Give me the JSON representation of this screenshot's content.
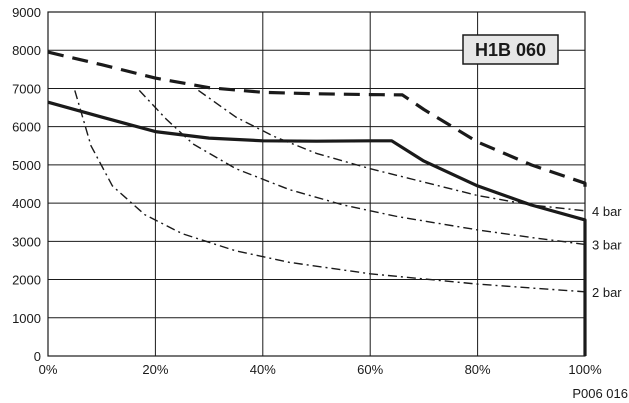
{
  "chart_data": {
    "type": "line",
    "title": "H1B 060",
    "footer": "P006 016",
    "xlabel": "",
    "ylabel": "",
    "xlim": [
      0,
      100
    ],
    "ylim": [
      0,
      9000
    ],
    "x_ticks": [
      0,
      20,
      40,
      60,
      80,
      100
    ],
    "x_tick_labels": [
      "0%",
      "20%",
      "40%",
      "60%",
      "80%",
      "100%"
    ],
    "y_ticks": [
      0,
      1000,
      2000,
      3000,
      4000,
      5000,
      6000,
      7000,
      8000,
      9000
    ],
    "y_tick_labels": [
      "0",
      "1000",
      "2000",
      "3000",
      "4000",
      "5000",
      "6000",
      "7000",
      "8000",
      "9000"
    ],
    "grid": true,
    "series": [
      {
        "style": "dashed-thick",
        "points": [
          [
            0,
            7950
          ],
          [
            10,
            7620
          ],
          [
            20,
            7270
          ],
          [
            30,
            7020
          ],
          [
            40,
            6900
          ],
          [
            50,
            6860
          ],
          [
            60,
            6840
          ],
          [
            66,
            6830
          ],
          [
            70,
            6450
          ],
          [
            80,
            5600
          ],
          [
            90,
            5000
          ],
          [
            100,
            4520
          ],
          [
            100,
            4250
          ]
        ]
      },
      {
        "style": "solid-thick",
        "points": [
          [
            0,
            6640
          ],
          [
            10,
            6250
          ],
          [
            20,
            5870
          ],
          [
            30,
            5700
          ],
          [
            40,
            5630
          ],
          [
            50,
            5620
          ],
          [
            60,
            5630
          ],
          [
            64,
            5630
          ],
          [
            70,
            5100
          ],
          [
            80,
            4450
          ],
          [
            90,
            3950
          ],
          [
            100,
            3560
          ],
          [
            100,
            0
          ]
        ]
      },
      {
        "name": "4 bar",
        "style": "dashdot",
        "points": [
          [
            28,
            6950
          ],
          [
            35,
            6250
          ],
          [
            42,
            5750
          ],
          [
            50,
            5300
          ],
          [
            60,
            4900
          ],
          [
            70,
            4550
          ],
          [
            80,
            4200
          ],
          [
            90,
            3950
          ],
          [
            100,
            3800
          ]
        ]
      },
      {
        "name": "3 bar",
        "style": "dashdot",
        "points": [
          [
            17,
            6950
          ],
          [
            22,
            6200
          ],
          [
            27,
            5550
          ],
          [
            35,
            4900
          ],
          [
            45,
            4350
          ],
          [
            55,
            3950
          ],
          [
            65,
            3650
          ],
          [
            80,
            3300
          ],
          [
            90,
            3100
          ],
          [
            100,
            2920
          ]
        ]
      },
      {
        "name": "2 bar",
        "style": "dashdot",
        "points": [
          [
            5,
            6950
          ],
          [
            8,
            5500
          ],
          [
            12,
            4450
          ],
          [
            18,
            3700
          ],
          [
            25,
            3200
          ],
          [
            35,
            2750
          ],
          [
            45,
            2450
          ],
          [
            60,
            2150
          ],
          [
            80,
            1880
          ],
          [
            90,
            1780
          ],
          [
            100,
            1680
          ]
        ]
      }
    ]
  }
}
